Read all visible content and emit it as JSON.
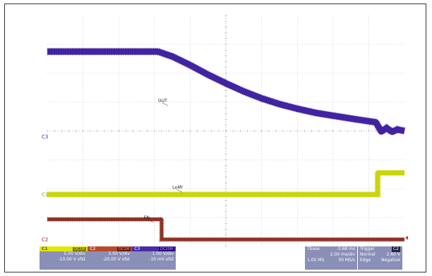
{
  "chart_data": {
    "type": "line",
    "title": "",
    "xlabel": "",
    "ylabel": "",
    "divisions": {
      "x": 10,
      "y": 8
    },
    "grid": true,
    "series": [
      {
        "name": "OUT",
        "channel": "C3",
        "color": "#3a1a9e",
        "x_div": [
          0,
          3.1,
          3.5,
          4.0,
          4.5,
          5.0,
          5.5,
          6.0,
          6.5,
          7.0,
          7.5,
          8.0,
          8.5,
          9.2,
          9.35,
          9.5,
          9.65,
          9.8,
          10.0
        ],
        "y_div": [
          2.95,
          2.95,
          2.78,
          2.48,
          2.15,
          1.85,
          1.57,
          1.33,
          1.13,
          0.97,
          0.83,
          0.73,
          0.63,
          0.5,
          0.18,
          0.3,
          0.17,
          0.25,
          0.2
        ]
      },
      {
        "name": "Lx4fr",
        "channel": "C1",
        "color": "#c8d400",
        "x_div": [
          0,
          9.25,
          9.25,
          10.0
        ],
        "y_div": [
          0,
          0,
          0.75,
          0.75
        ]
      },
      {
        "name": "EN",
        "channel": "C2",
        "color": "#8a2a1e",
        "x_div": [
          0,
          3.2,
          3.2,
          10.0
        ],
        "y_div": [
          0.7,
          0.7,
          0,
          0
        ]
      }
    ],
    "channel_settings": [
      {
        "channel": "C1",
        "coupling": "DC1M",
        "vdiv": "5.00 V/div",
        "offset": "-10.00 V ofst",
        "color": "#e2e800"
      },
      {
        "channel": "C2",
        "coupling": "DC1M",
        "vdiv": "5.00 V/div",
        "offset": "-20.00 V ofst",
        "color": "#b84a2a"
      },
      {
        "channel": "C3",
        "coupling": "DC20M",
        "vdiv": "1.00 V/div",
        "offset": "-10 mV ofst",
        "color": "#4a2aa8"
      }
    ],
    "timebase": {
      "label": "Tbase",
      "delay": "-3.68 ms",
      "tdiv": "2.00 ms/div",
      "samples": "1.00 MS",
      "rate": "50 MS/s"
    },
    "trigger": {
      "label": "Trigger",
      "channel": "C2",
      "mode": "Normal",
      "level": "2.60 V",
      "type": "Edge",
      "slope": "Negative"
    }
  }
}
